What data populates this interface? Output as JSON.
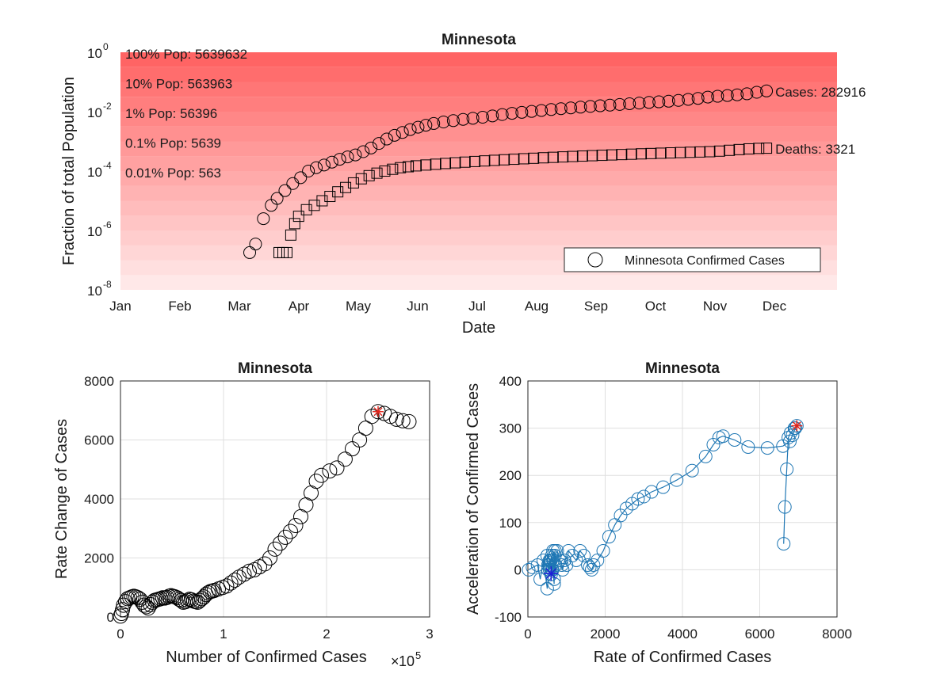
{
  "chart_data": [
    {
      "type": "scatter",
      "title": "Minnesota",
      "xlabel": "Date",
      "ylabel": "Fraction of total Population",
      "yscale": "log",
      "ylim": [
        1e-08,
        1
      ],
      "yticks": [
        {
          "value": 1e-08,
          "base": "10",
          "exp": "-8"
        },
        {
          "value": 1e-06,
          "base": "10",
          "exp": "-6"
        },
        {
          "value": 0.0001,
          "base": "10",
          "exp": "-4"
        },
        {
          "value": 0.01,
          "base": "10",
          "exp": "-2"
        },
        {
          "value": 1,
          "base": "10",
          "exp": "0"
        }
      ],
      "xticks": [
        "Jan",
        "Feb",
        "Mar",
        "Apr",
        "May",
        "Jun",
        "Jul",
        "Aug",
        "Sep",
        "Oct",
        "Nov",
        "Dec"
      ],
      "xlim_days": [
        0,
        366
      ],
      "grid": false,
      "legend": {
        "location": "bottom-right",
        "entries": [
          "Minnesota Confirmed Cases"
        ]
      },
      "population_bands": [
        "100% Pop: 5639632",
        "10% Pop: 563963",
        "1% Pop: 56396",
        "0.1% Pop: 5639",
        "0.01% Pop: 563"
      ],
      "population_band_fractions": [
        1,
        0.1,
        0.01,
        0.001,
        0.0001
      ],
      "band_color": "#ff5a5a",
      "annotations": {
        "cases": "Cases: 282916",
        "deaths": "Deaths: 3321"
      },
      "cases_series": {
        "name": "Minnesota Confirmed Cases",
        "marker": "circle",
        "day_of_year": [
          66,
          69,
          73,
          77,
          80,
          84,
          88,
          92,
          96,
          100,
          104,
          108,
          112,
          116,
          120,
          124,
          128,
          132,
          136,
          140,
          144,
          148,
          152,
          156,
          160,
          165,
          170,
          175,
          180,
          185,
          190,
          195,
          200,
          205,
          210,
          215,
          220,
          225,
          230,
          235,
          240,
          245,
          250,
          255,
          260,
          265,
          270,
          275,
          280,
          285,
          290,
          295,
          300,
          305,
          310,
          315,
          320,
          325,
          330
        ],
        "fraction": [
          1.8e-07,
          3.5e-07,
          2.5e-06,
          7e-06,
          1.2e-05,
          2.2e-05,
          3.8e-05,
          6e-05,
          0.0001,
          0.00013,
          0.00016,
          0.0002,
          0.00025,
          0.0003,
          0.00035,
          0.00045,
          0.0006,
          0.00085,
          0.0012,
          0.0016,
          0.002,
          0.0025,
          0.003,
          0.0035,
          0.004,
          0.0045,
          0.005,
          0.0055,
          0.006,
          0.0065,
          0.0072,
          0.008,
          0.0088,
          0.0095,
          0.0102,
          0.011,
          0.0118,
          0.0126,
          0.0134,
          0.0142,
          0.015,
          0.0158,
          0.0166,
          0.0175,
          0.0185,
          0.0195,
          0.0205,
          0.0215,
          0.0225,
          0.024,
          0.026,
          0.028,
          0.031,
          0.033,
          0.035,
          0.037,
          0.04,
          0.045,
          0.05
        ]
      },
      "deaths_series": {
        "name": "Minnesota Deaths",
        "marker": "square",
        "day_of_year": [
          81,
          83,
          85,
          87,
          89,
          91,
          95,
          99,
          103,
          107,
          111,
          115,
          119,
          123,
          127,
          131,
          135,
          139,
          143,
          147,
          151,
          156,
          161,
          166,
          171,
          176,
          181,
          186,
          191,
          196,
          201,
          206,
          211,
          216,
          221,
          226,
          231,
          236,
          241,
          246,
          251,
          256,
          261,
          266,
          271,
          276,
          281,
          286,
          291,
          296,
          301,
          306,
          311,
          316,
          321,
          326,
          330
        ],
        "fraction": [
          1.8e-07,
          1.8e-07,
          1.8e-07,
          7e-07,
          1.7e-06,
          3e-06,
          5e-06,
          7e-06,
          1e-05,
          1.4e-05,
          2e-05,
          2.8e-05,
          4e-05,
          5.5e-05,
          7e-05,
          8.5e-05,
          0.0001,
          0.000115,
          0.00013,
          0.00014,
          0.00015,
          0.00016,
          0.00017,
          0.00018,
          0.00019,
          0.0002,
          0.00021,
          0.00022,
          0.00023,
          0.00024,
          0.00025,
          0.00026,
          0.00027,
          0.00028,
          0.00029,
          0.0003,
          0.00031,
          0.00032,
          0.00033,
          0.00034,
          0.00035,
          0.00036,
          0.00037,
          0.00038,
          0.00039,
          0.0004,
          0.00041,
          0.00042,
          0.00043,
          0.00044,
          0.00045,
          0.00047,
          0.0005,
          0.00053,
          0.00056,
          0.00058,
          0.00059
        ]
      }
    },
    {
      "type": "scatter",
      "title": "Minnesota",
      "xlabel": "Number of Confirmed Cases",
      "x_exponent_label": {
        "prefix": "×",
        "base": "10",
        "exp": "5"
      },
      "ylabel": "Rate Change of Cases",
      "xlim": [
        0,
        3
      ],
      "ylim": [
        0,
        8000
      ],
      "xticks": [
        0,
        1,
        2,
        3
      ],
      "yticks": [
        0,
        2000,
        4000,
        6000,
        8000
      ],
      "grid": true,
      "marker_color": "#000000",
      "highlight_color": "#e0241b",
      "highlight_point": {
        "x": 2.5,
        "y": 6960
      },
      "x": [
        0,
        0.01,
        0.02,
        0.03,
        0.05,
        0.07,
        0.09,
        0.11,
        0.13,
        0.15,
        0.17,
        0.19,
        0.21,
        0.23,
        0.25,
        0.27,
        0.29,
        0.31,
        0.33,
        0.35,
        0.37,
        0.39,
        0.41,
        0.43,
        0.45,
        0.47,
        0.49,
        0.51,
        0.53,
        0.55,
        0.57,
        0.59,
        0.61,
        0.63,
        0.65,
        0.67,
        0.69,
        0.71,
        0.73,
        0.75,
        0.77,
        0.79,
        0.81,
        0.83,
        0.85,
        0.87,
        0.89,
        0.91,
        0.95,
        0.99,
        1.03,
        1.07,
        1.11,
        1.15,
        1.2,
        1.25,
        1.3,
        1.35,
        1.4,
        1.45,
        1.5,
        1.55,
        1.6,
        1.65,
        1.7,
        1.75,
        1.8,
        1.85,
        1.9,
        1.95,
        2.03,
        2.1,
        2.18,
        2.25,
        2.32,
        2.38,
        2.44,
        2.5,
        2.56,
        2.62,
        2.68,
        2.74,
        2.8
      ],
      "y": [
        30,
        120,
        250,
        400,
        520,
        620,
        650,
        680,
        700,
        680,
        650,
        600,
        500,
        400,
        350,
        300,
        420,
        500,
        560,
        580,
        600,
        620,
        650,
        640,
        660,
        700,
        720,
        700,
        680,
        650,
        600,
        560,
        500,
        520,
        560,
        600,
        580,
        540,
        520,
        500,
        560,
        620,
        680,
        760,
        820,
        860,
        880,
        900,
        950,
        1000,
        1050,
        1150,
        1250,
        1350,
        1450,
        1550,
        1600,
        1700,
        1800,
        2000,
        2300,
        2500,
        2700,
        2900,
        3100,
        3400,
        3800,
        4200,
        4600,
        4800,
        4950,
        5050,
        5350,
        5700,
        6000,
        6400,
        6800,
        6960,
        6900,
        6800,
        6700,
        6650,
        6620
      ]
    },
    {
      "type": "scatter",
      "title": "Minnesota",
      "xlabel": "Rate of Confirmed Cases",
      "ylabel": "Acceleration of Confirmed Cases",
      "xlim": [
        0,
        8000
      ],
      "ylim": [
        -100,
        400
      ],
      "xticks": [
        0,
        2000,
        4000,
        6000,
        8000
      ],
      "yticks": [
        -100,
        0,
        100,
        200,
        300,
        400
      ],
      "grid": true,
      "marker_color": "#1f77b4",
      "start_color": "#1f1fd6",
      "highlight_color": "#e0241b",
      "start_point": {
        "x": 600,
        "y": -8
      },
      "highlight_point": {
        "x": 6960,
        "y": 305
      },
      "x": [
        20,
        120,
        250,
        320,
        400,
        500,
        560,
        620,
        680,
        700,
        650,
        600,
        520,
        500,
        560,
        620,
        680,
        720,
        700,
        650,
        600,
        560,
        520,
        580,
        640,
        700,
        760,
        820,
        880,
        900,
        950,
        1000,
        1050,
        1150,
        1250,
        1350,
        1450,
        1550,
        1600,
        1650,
        1700,
        1800,
        1950,
        2100,
        2250,
        2400,
        2550,
        2700,
        2850,
        3000,
        3200,
        3500,
        3850,
        4250,
        4600,
        4800,
        4950,
        5050,
        5350,
        5700,
        6200,
        6600,
        6780,
        6850,
        6920,
        6960,
        6900,
        6800,
        6740,
        6700,
        6650,
        6620
      ],
      "y": [
        0,
        5,
        10,
        -20,
        20,
        -40,
        10,
        30,
        -30,
        40,
        20,
        -10,
        0,
        30,
        20,
        0,
        -20,
        10,
        30,
        40,
        20,
        0,
        10,
        20,
        0,
        30,
        40,
        20,
        10,
        0,
        20,
        10,
        40,
        30,
        20,
        40,
        30,
        10,
        5,
        0,
        10,
        20,
        40,
        70,
        95,
        115,
        130,
        140,
        150,
        155,
        165,
        175,
        190,
        210,
        240,
        265,
        280,
        283,
        275,
        260,
        258,
        262,
        272,
        285,
        300,
        305,
        300,
        290,
        280,
        213,
        133,
        55
      ]
    }
  ]
}
